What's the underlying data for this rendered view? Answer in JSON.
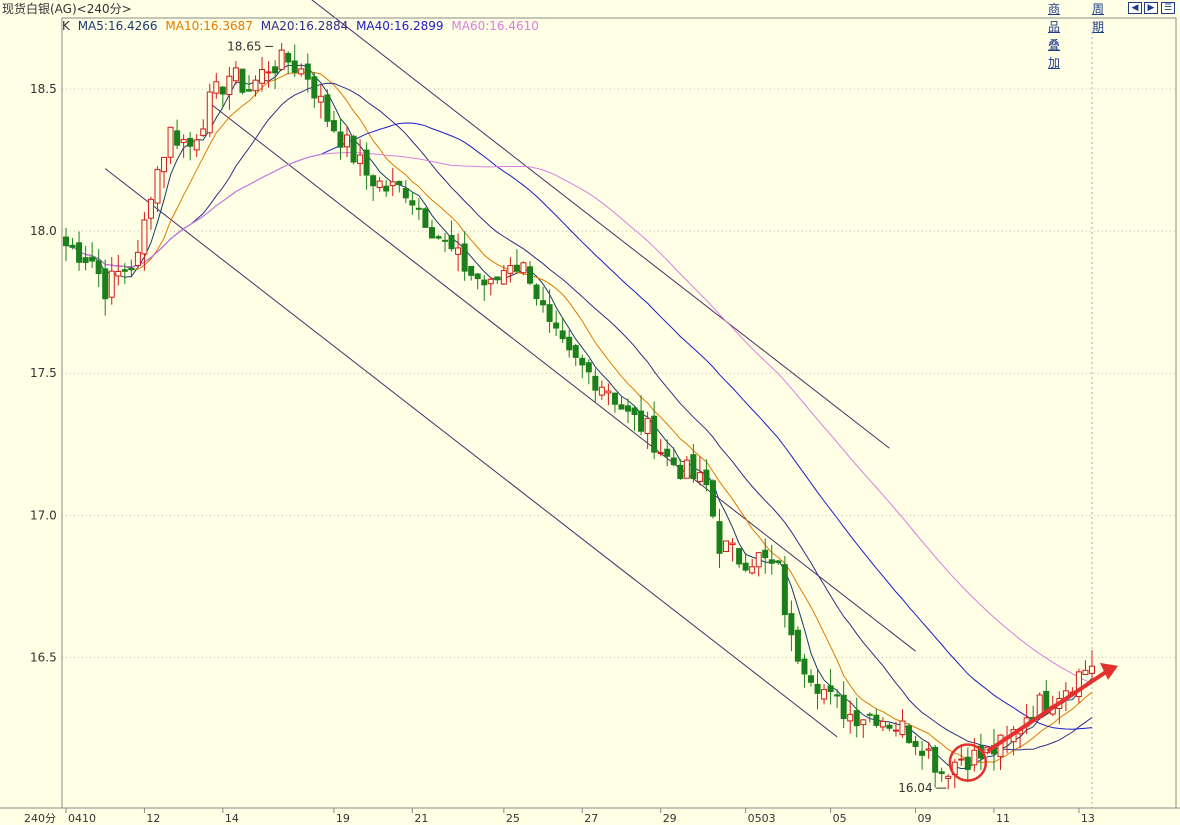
{
  "header": {
    "title": "现货白银(AG)<240分>"
  },
  "toolbar": {
    "overlay_label": "商品叠加",
    "period_label": "周期",
    "nav_icons": [
      "arrow-left-icon",
      "arrow-right-icon",
      "list-icon"
    ]
  },
  "legend": {
    "k_label": "K",
    "items": [
      {
        "text": "MA5:16.4266",
        "color": "#1a3a6e"
      },
      {
        "text": "MA10:16.3687",
        "color": "#e07b00"
      },
      {
        "text": "MA20:16.2884",
        "color": "#2e2e8a"
      },
      {
        "text": "MA40:16.2899",
        "color": "#1c1cc8"
      },
      {
        "text": "MA60:16.4610",
        "color": "#d77fe0"
      }
    ]
  },
  "colors": {
    "background": "#ffffe6",
    "up": "#d21a1a",
    "down": "#1b7f1b",
    "grid": "#bdbdaa",
    "channel": "#4a2a6a",
    "ma5": "#1a3a6e",
    "ma10": "#e07b00",
    "ma20": "#2e2e8a",
    "ma40": "#1c1cc8",
    "ma60": "#d77fe0",
    "annotation": "#e53030"
  },
  "chart_data": {
    "type": "candlestick",
    "period_label": "240分",
    "ylim": [
      15.97,
      18.75
    ],
    "y_ticks": [
      16.5,
      17.0,
      17.5,
      18.0,
      18.5
    ],
    "y_tick_labels": [
      "16.5",
      "17.0",
      "17.5",
      "18.0",
      "18.5"
    ],
    "x_ticks": [
      {
        "label": "0410",
        "index": 0
      },
      {
        "label": "12",
        "index": 12
      },
      {
        "label": "14",
        "index": 24
      },
      {
        "label": "19",
        "index": 41
      },
      {
        "label": "21",
        "index": 53
      },
      {
        "label": "25",
        "index": 67
      },
      {
        "label": "27",
        "index": 79
      },
      {
        "label": "29",
        "index": 91
      },
      {
        "label": "0503",
        "index": 104
      },
      {
        "label": "05",
        "index": 117
      },
      {
        "label": "09",
        "index": 130
      },
      {
        "label": "11",
        "index": 142
      },
      {
        "label": "13",
        "index": 155
      }
    ],
    "candle_count": 158,
    "anchors": [
      [
        0,
        17.95
      ],
      [
        4,
        17.9
      ],
      [
        6,
        17.8
      ],
      [
        8,
        17.85
      ],
      [
        11,
        17.9
      ],
      [
        13,
        18.15
      ],
      [
        16,
        18.35
      ],
      [
        19,
        18.3
      ],
      [
        22,
        18.45
      ],
      [
        25,
        18.55
      ],
      [
        28,
        18.5
      ],
      [
        31,
        18.58
      ],
      [
        34,
        18.6
      ],
      [
        37,
        18.55
      ],
      [
        40,
        18.4
      ],
      [
        43,
        18.3
      ],
      [
        46,
        18.2
      ],
      [
        49,
        18.15
      ],
      [
        52,
        18.15
      ],
      [
        55,
        18.05
      ],
      [
        58,
        17.95
      ],
      [
        62,
        17.85
      ],
      [
        65,
        17.8
      ],
      [
        68,
        17.9
      ],
      [
        71,
        17.85
      ],
      [
        74,
        17.65
      ],
      [
        77,
        17.55
      ],
      [
        80,
        17.5
      ],
      [
        83,
        17.45
      ],
      [
        86,
        17.35
      ],
      [
        89,
        17.3
      ],
      [
        92,
        17.2
      ],
      [
        95,
        17.15
      ],
      [
        98,
        17.1
      ],
      [
        100,
        16.9
      ],
      [
        103,
        16.85
      ],
      [
        106,
        16.85
      ],
      [
        109,
        16.8
      ],
      [
        111,
        16.55
      ],
      [
        114,
        16.45
      ],
      [
        117,
        16.35
      ],
      [
        120,
        16.3
      ],
      [
        124,
        16.3
      ],
      [
        128,
        16.25
      ],
      [
        131,
        16.2
      ],
      [
        134,
        16.1
      ],
      [
        137,
        16.15
      ],
      [
        140,
        16.15
      ],
      [
        144,
        16.2
      ],
      [
        147,
        16.3
      ],
      [
        150,
        16.35
      ],
      [
        153,
        16.4
      ],
      [
        157,
        16.48
      ]
    ],
    "ma_series": [
      {
        "key": "ma5",
        "offset": 0.01
      },
      {
        "key": "ma10",
        "offset": 0.04
      },
      {
        "key": "ma20",
        "offset": 0.1
      },
      {
        "key": "ma40",
        "offset": 0.22
      },
      {
        "key": "ma60",
        "offset": 0.34
      }
    ],
    "annotations": {
      "high_label": "18.65",
      "high_value": 18.65,
      "high_index": 32,
      "low_label": "16.04",
      "low_value": 16.04,
      "low_index": 135
    }
  }
}
